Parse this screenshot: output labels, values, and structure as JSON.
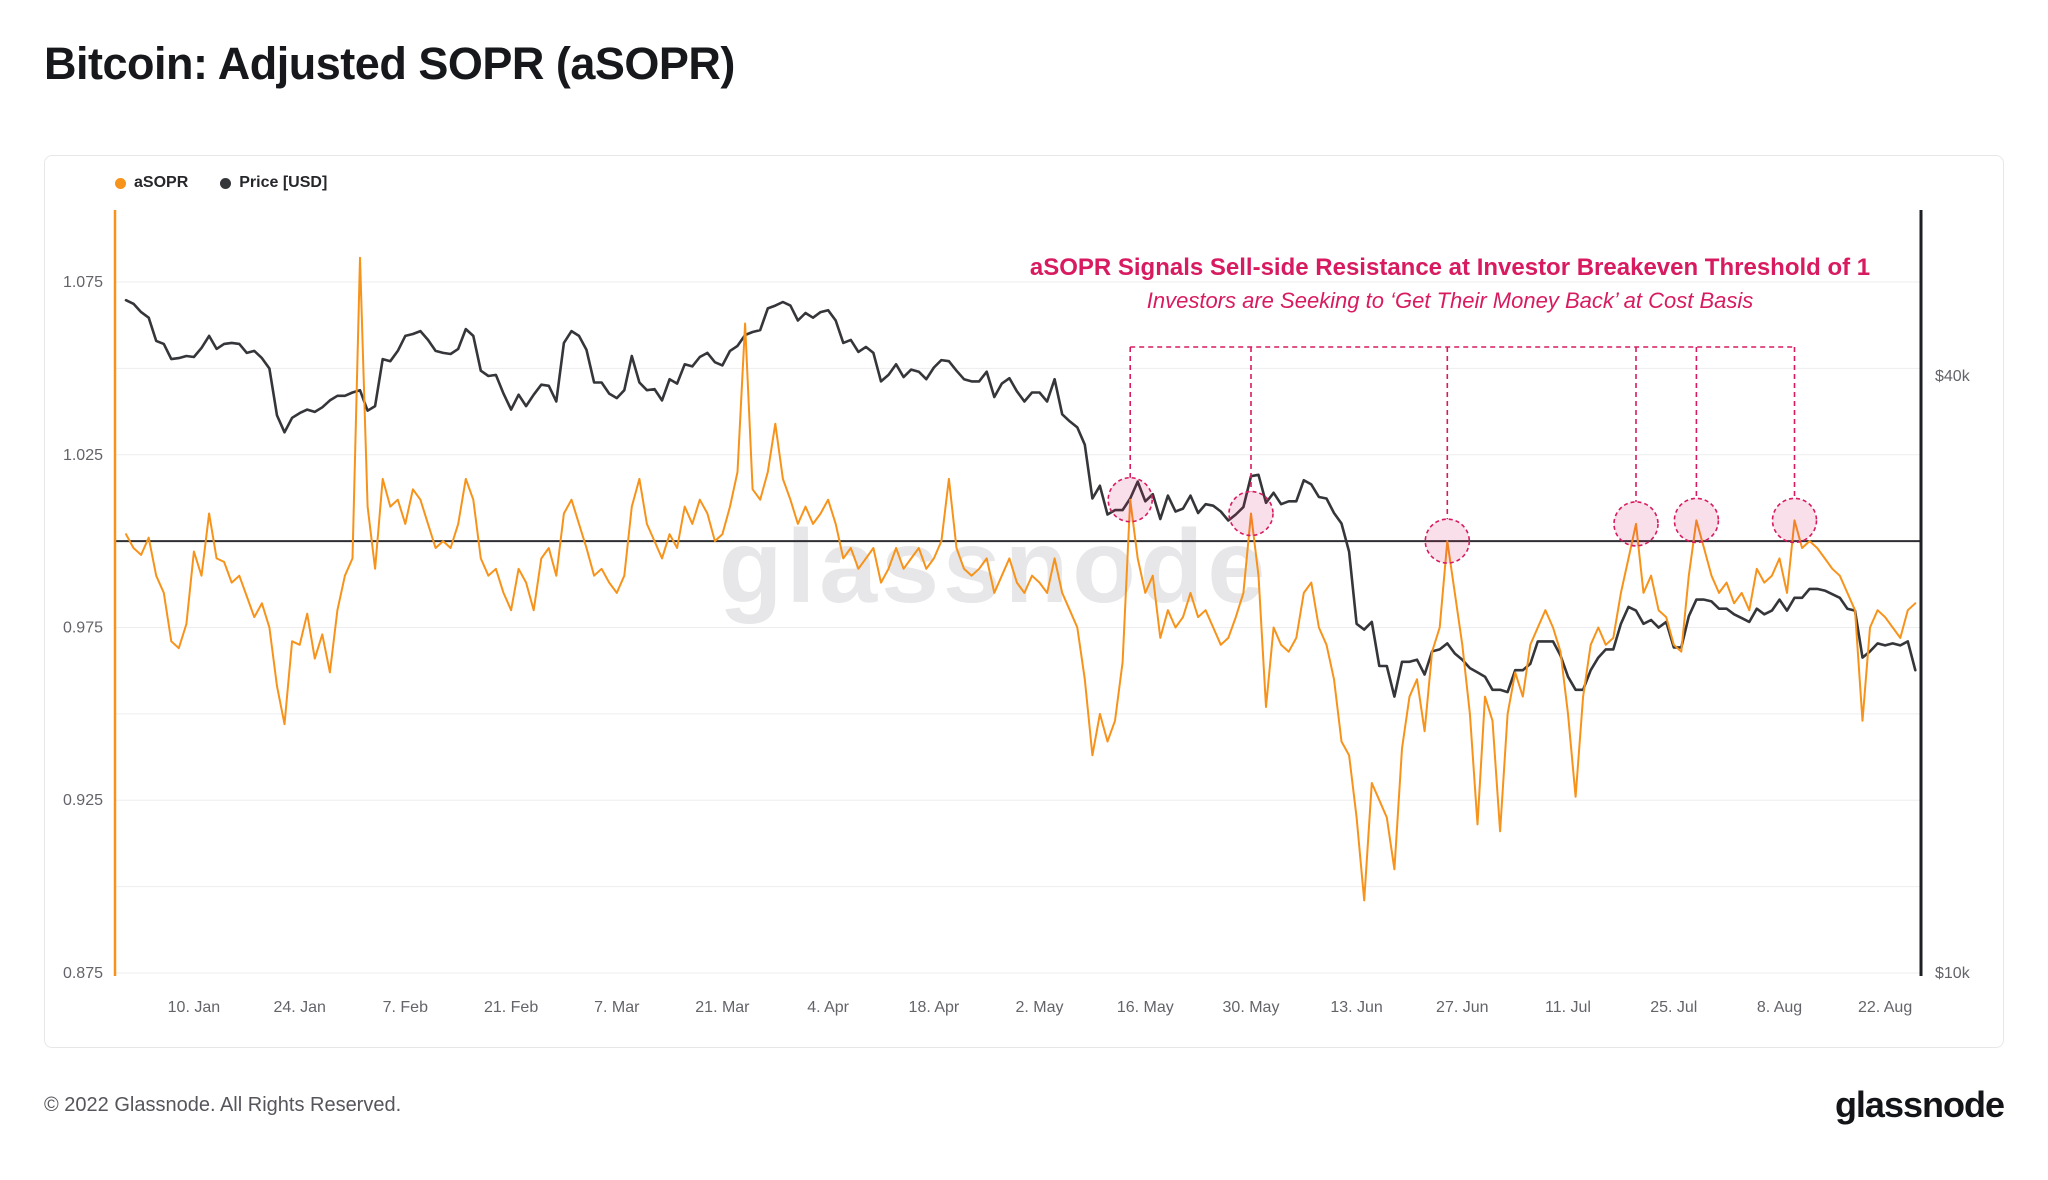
{
  "page": {
    "title": "Bitcoin: Adjusted SOPR (aSOPR)",
    "footer_copyright": "© 2022 Glassnode. All Rights Reserved.",
    "footer_brand": "glassnode"
  },
  "watermark": "glassnode",
  "legend": [
    {
      "label": "aSOPR",
      "color": "#F7931A"
    },
    {
      "label": "Price [USD]",
      "color": "#35363A"
    }
  ],
  "annotation": {
    "title": "aSOPR Signals Sell-side Resistance at Investor Breakeven Threshold of 1",
    "subtitle": "Investors are Seeking to ‘Get Their Money Back’ at Cost Basis",
    "color": "#D81B60"
  },
  "chart_data": {
    "type": "line",
    "title": "Bitcoin: Adjusted SOPR (aSOPR)",
    "start_date": "2022-01-01",
    "interval": "1d",
    "legend_position": "top-left",
    "grid": "horizontal",
    "x_tick_labels": [
      "10. Jan",
      "24. Jan",
      "7. Feb",
      "21. Feb",
      "7. Mar",
      "21. Mar",
      "4. Apr",
      "18. Apr",
      "2. May",
      "16. May",
      "30. May",
      "13. Jun",
      "27. Jun",
      "11. Jul",
      "25. Jul",
      "8. Aug",
      "22. Aug"
    ],
    "x_tick_day_index": [
      9,
      23,
      37,
      51,
      65,
      79,
      93,
      107,
      121,
      135,
      149,
      163,
      177,
      191,
      205,
      219,
      233
    ],
    "y_axis_left": {
      "label": "aSOPR",
      "ticks": [
        1.075,
        1.025,
        0.975,
        0.925,
        0.875
      ],
      "range": [
        0.873,
        1.097
      ]
    },
    "y_axis_right": {
      "label": "Price [USD]",
      "scale": "log",
      "ticks": [
        "$40k",
        "$10k"
      ],
      "tick_values": [
        40000,
        10000
      ]
    },
    "threshold": 1.0,
    "series": [
      {
        "name": "aSOPR",
        "color": "#F7931A",
        "values": [
          1.002,
          0.998,
          0.996,
          1.001,
          0.99,
          0.985,
          0.971,
          0.969,
          0.976,
          0.997,
          0.99,
          1.008,
          0.995,
          0.994,
          0.988,
          0.99,
          0.984,
          0.978,
          0.982,
          0.975,
          0.958,
          0.947,
          0.971,
          0.97,
          0.979,
          0.966,
          0.973,
          0.962,
          0.98,
          0.99,
          0.995,
          1.082,
          1.01,
          0.992,
          1.018,
          1.01,
          1.012,
          1.005,
          1.015,
          1.012,
          1.005,
          0.998,
          1.0,
          0.998,
          1.005,
          1.018,
          1.012,
          0.995,
          0.99,
          0.992,
          0.985,
          0.98,
          0.992,
          0.988,
          0.98,
          0.995,
          0.998,
          0.99,
          1.008,
          1.012,
          1.005,
          0.998,
          0.99,
          0.992,
          0.988,
          0.985,
          0.99,
          1.01,
          1.018,
          1.005,
          1.0,
          0.995,
          1.002,
          0.998,
          1.01,
          1.005,
          1.012,
          1.008,
          1.0,
          1.002,
          1.01,
          1.02,
          1.063,
          1.015,
          1.012,
          1.02,
          1.034,
          1.018,
          1.012,
          1.005,
          1.01,
          1.005,
          1.008,
          1.012,
          1.005,
          0.995,
          0.998,
          0.992,
          0.995,
          0.998,
          0.988,
          0.992,
          0.998,
          0.992,
          0.995,
          0.998,
          0.992,
          0.995,
          1.0,
          1.018,
          0.998,
          0.992,
          0.99,
          0.992,
          0.995,
          0.985,
          0.99,
          0.995,
          0.988,
          0.985,
          0.99,
          0.988,
          0.985,
          0.995,
          0.985,
          0.98,
          0.975,
          0.96,
          0.938,
          0.95,
          0.942,
          0.948,
          0.965,
          1.012,
          0.995,
          0.985,
          0.99,
          0.972,
          0.98,
          0.975,
          0.978,
          0.985,
          0.978,
          0.98,
          0.975,
          0.97,
          0.972,
          0.978,
          0.985,
          1.008,
          0.99,
          0.952,
          0.975,
          0.97,
          0.968,
          0.972,
          0.985,
          0.988,
          0.975,
          0.97,
          0.96,
          0.942,
          0.938,
          0.92,
          0.896,
          0.93,
          0.925,
          0.92,
          0.905,
          0.94,
          0.955,
          0.96,
          0.945,
          0.968,
          0.975,
          1.0,
          0.985,
          0.97,
          0.95,
          0.918,
          0.955,
          0.948,
          0.916,
          0.95,
          0.962,
          0.955,
          0.97,
          0.975,
          0.98,
          0.975,
          0.968,
          0.95,
          0.926,
          0.955,
          0.97,
          0.975,
          0.97,
          0.972,
          0.985,
          0.995,
          1.005,
          0.985,
          0.99,
          0.98,
          0.978,
          0.97,
          0.968,
          0.99,
          1.006,
          0.998,
          0.99,
          0.985,
          0.988,
          0.982,
          0.985,
          0.98,
          0.992,
          0.988,
          0.99,
          0.995,
          0.985,
          1.006,
          0.998,
          1.0,
          0.998,
          0.995,
          0.992,
          0.99,
          0.985,
          0.98,
          0.948,
          0.975,
          0.98,
          0.978,
          0.975,
          0.972,
          0.98,
          0.982
        ]
      },
      {
        "name": "Price [USD]",
        "color": "#35363A",
        "values": [
          47700,
          47300,
          46400,
          45800,
          43400,
          43100,
          41600,
          41700,
          41900,
          41800,
          42700,
          43900,
          42600,
          43100,
          43200,
          43100,
          42200,
          42400,
          41700,
          40700,
          36500,
          35100,
          36300,
          36700,
          37000,
          36800,
          37200,
          37800,
          38200,
          38200,
          38500,
          38700,
          36900,
          37300,
          41600,
          41400,
          42400,
          43900,
          44100,
          44400,
          43500,
          42400,
          42200,
          42100,
          42600,
          44600,
          43900,
          40500,
          40000,
          40100,
          38400,
          37000,
          38300,
          37300,
          38300,
          39200,
          39100,
          37700,
          43200,
          44400,
          43900,
          42500,
          39400,
          39400,
          38400,
          38000,
          38700,
          41900,
          39400,
          38700,
          38800,
          37800,
          39700,
          39300,
          41100,
          40900,
          41800,
          42200,
          41300,
          41000,
          42400,
          42900,
          44000,
          44300,
          44500,
          46800,
          47100,
          47500,
          47100,
          45500,
          46300,
          45800,
          46400,
          46600,
          45500,
          43200,
          43500,
          42300,
          42800,
          42200,
          39500,
          40100,
          41100,
          39900,
          40600,
          40400,
          39700,
          40800,
          41500,
          41400,
          40500,
          39700,
          39500,
          39500,
          40400,
          38100,
          39300,
          39800,
          38600,
          37700,
          38500,
          38500,
          37700,
          39700,
          36600,
          36000,
          35500,
          34100,
          30100,
          31000,
          29000,
          29300,
          29300,
          30100,
          31300,
          29900,
          30400,
          28700,
          30300,
          29200,
          29400,
          30300,
          29100,
          29700,
          29600,
          29200,
          28600,
          29000,
          29500,
          31700,
          31800,
          29800,
          30500,
          29700,
          29900,
          29900,
          31400,
          31100,
          30200,
          30100,
          29100,
          28400,
          26600,
          22500,
          22200,
          22600,
          20400,
          20400,
          19000,
          20600,
          20600,
          20700,
          20000,
          21100,
          21200,
          21500,
          21000,
          20700,
          20300,
          20100,
          19900,
          19300,
          19300,
          19200,
          20200,
          20200,
          20500,
          21600,
          21600,
          21600,
          20900,
          19900,
          19300,
          19300,
          20200,
          20800,
          21200,
          21200,
          22500,
          23400,
          23200,
          22500,
          22700,
          22300,
          22600,
          21300,
          21300,
          22900,
          23800,
          23800,
          23700,
          23300,
          23300,
          23000,
          22800,
          22600,
          23300,
          23000,
          23200,
          23800,
          23200,
          23900,
          23900,
          24400,
          24400,
          24300,
          24100,
          23900,
          23300,
          23200,
          20800,
          21100,
          21500,
          21400,
          21500,
          21400,
          21600,
          20200
        ]
      }
    ],
    "markers": {
      "description": "aSOPR peaks rejected at breakeven threshold of 1 (dashed pink circles)",
      "day_index": [
        133,
        149,
        175,
        200,
        208,
        221
      ],
      "dates": [
        "2022-05-14",
        "2022-05-30",
        "2022-06-25",
        "2022-07-20",
        "2022-07-28",
        "2022-08-10"
      ]
    }
  }
}
